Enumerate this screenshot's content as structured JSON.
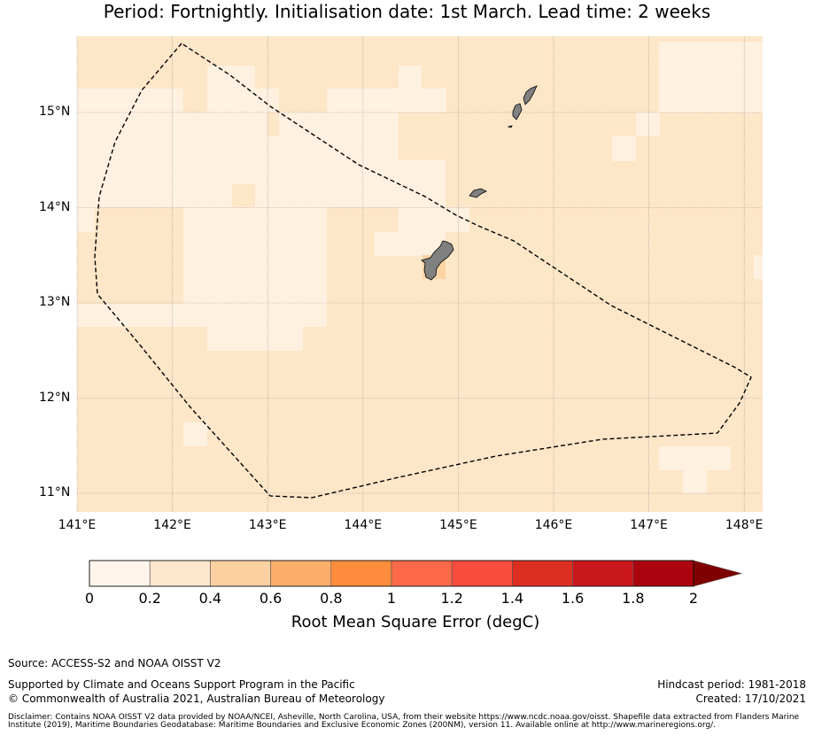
{
  "title": "Period: Fortnightly. Initialisation date: 1st March. Lead time: 2 weeks",
  "colors": {
    "base": "#fee6c8",
    "light": "#fff1df",
    "orange": "#fdd4a4",
    "land": "#808080",
    "scale": [
      "#fff5eb",
      "#fee6ce",
      "#fdd0a2",
      "#fdae6b",
      "#fd8d3c",
      "#fc6a4a",
      "#fb4d3d",
      "#dc2f22",
      "#cb181d",
      "#ab040f",
      "#7f0000"
    ]
  },
  "map": {
    "lat_labels": [
      "15°N",
      "14°N",
      "13°N",
      "12°N",
      "11°N"
    ],
    "lon_labels": [
      "141°E",
      "142°E",
      "143°E",
      "144°E",
      "145°E",
      "146°E",
      "147°E",
      "148°E"
    ]
  },
  "colorbar": {
    "ticks": [
      "0",
      "0.2",
      "0.4",
      "0.6",
      "0.8",
      "1",
      "1.2",
      "1.4",
      "1.6",
      "1.8",
      "2"
    ],
    "label": "Root Mean Square Error (degC)"
  },
  "footer": {
    "source": "Source: ACCESS-S2 and NOAA OISST V2",
    "supported": "Supported by Climate and Oceans Support Program in the Pacific",
    "copyright": "© Commonwealth of Australia 2021, Australian Bureau of Meteorology",
    "hindcast": "Hindcast period: 1981-2018",
    "created": "Created: 17/10/2021",
    "disclaimer": "Disclaimer: Contains NOAA OISST V2 data provided by NOAA/NCEI, Asheville, North Carolina, USA, from their website https://www.ncdc.noaa.gov/oisst. Shapefile data extracted from Flanders Marine Institute (2019), Maritime Boundaries Geodatabase: Maritime Boundaries and Exclusive Economic Zones (200NM), version 11. Available online at http://www.marineregions.org/."
  }
}
